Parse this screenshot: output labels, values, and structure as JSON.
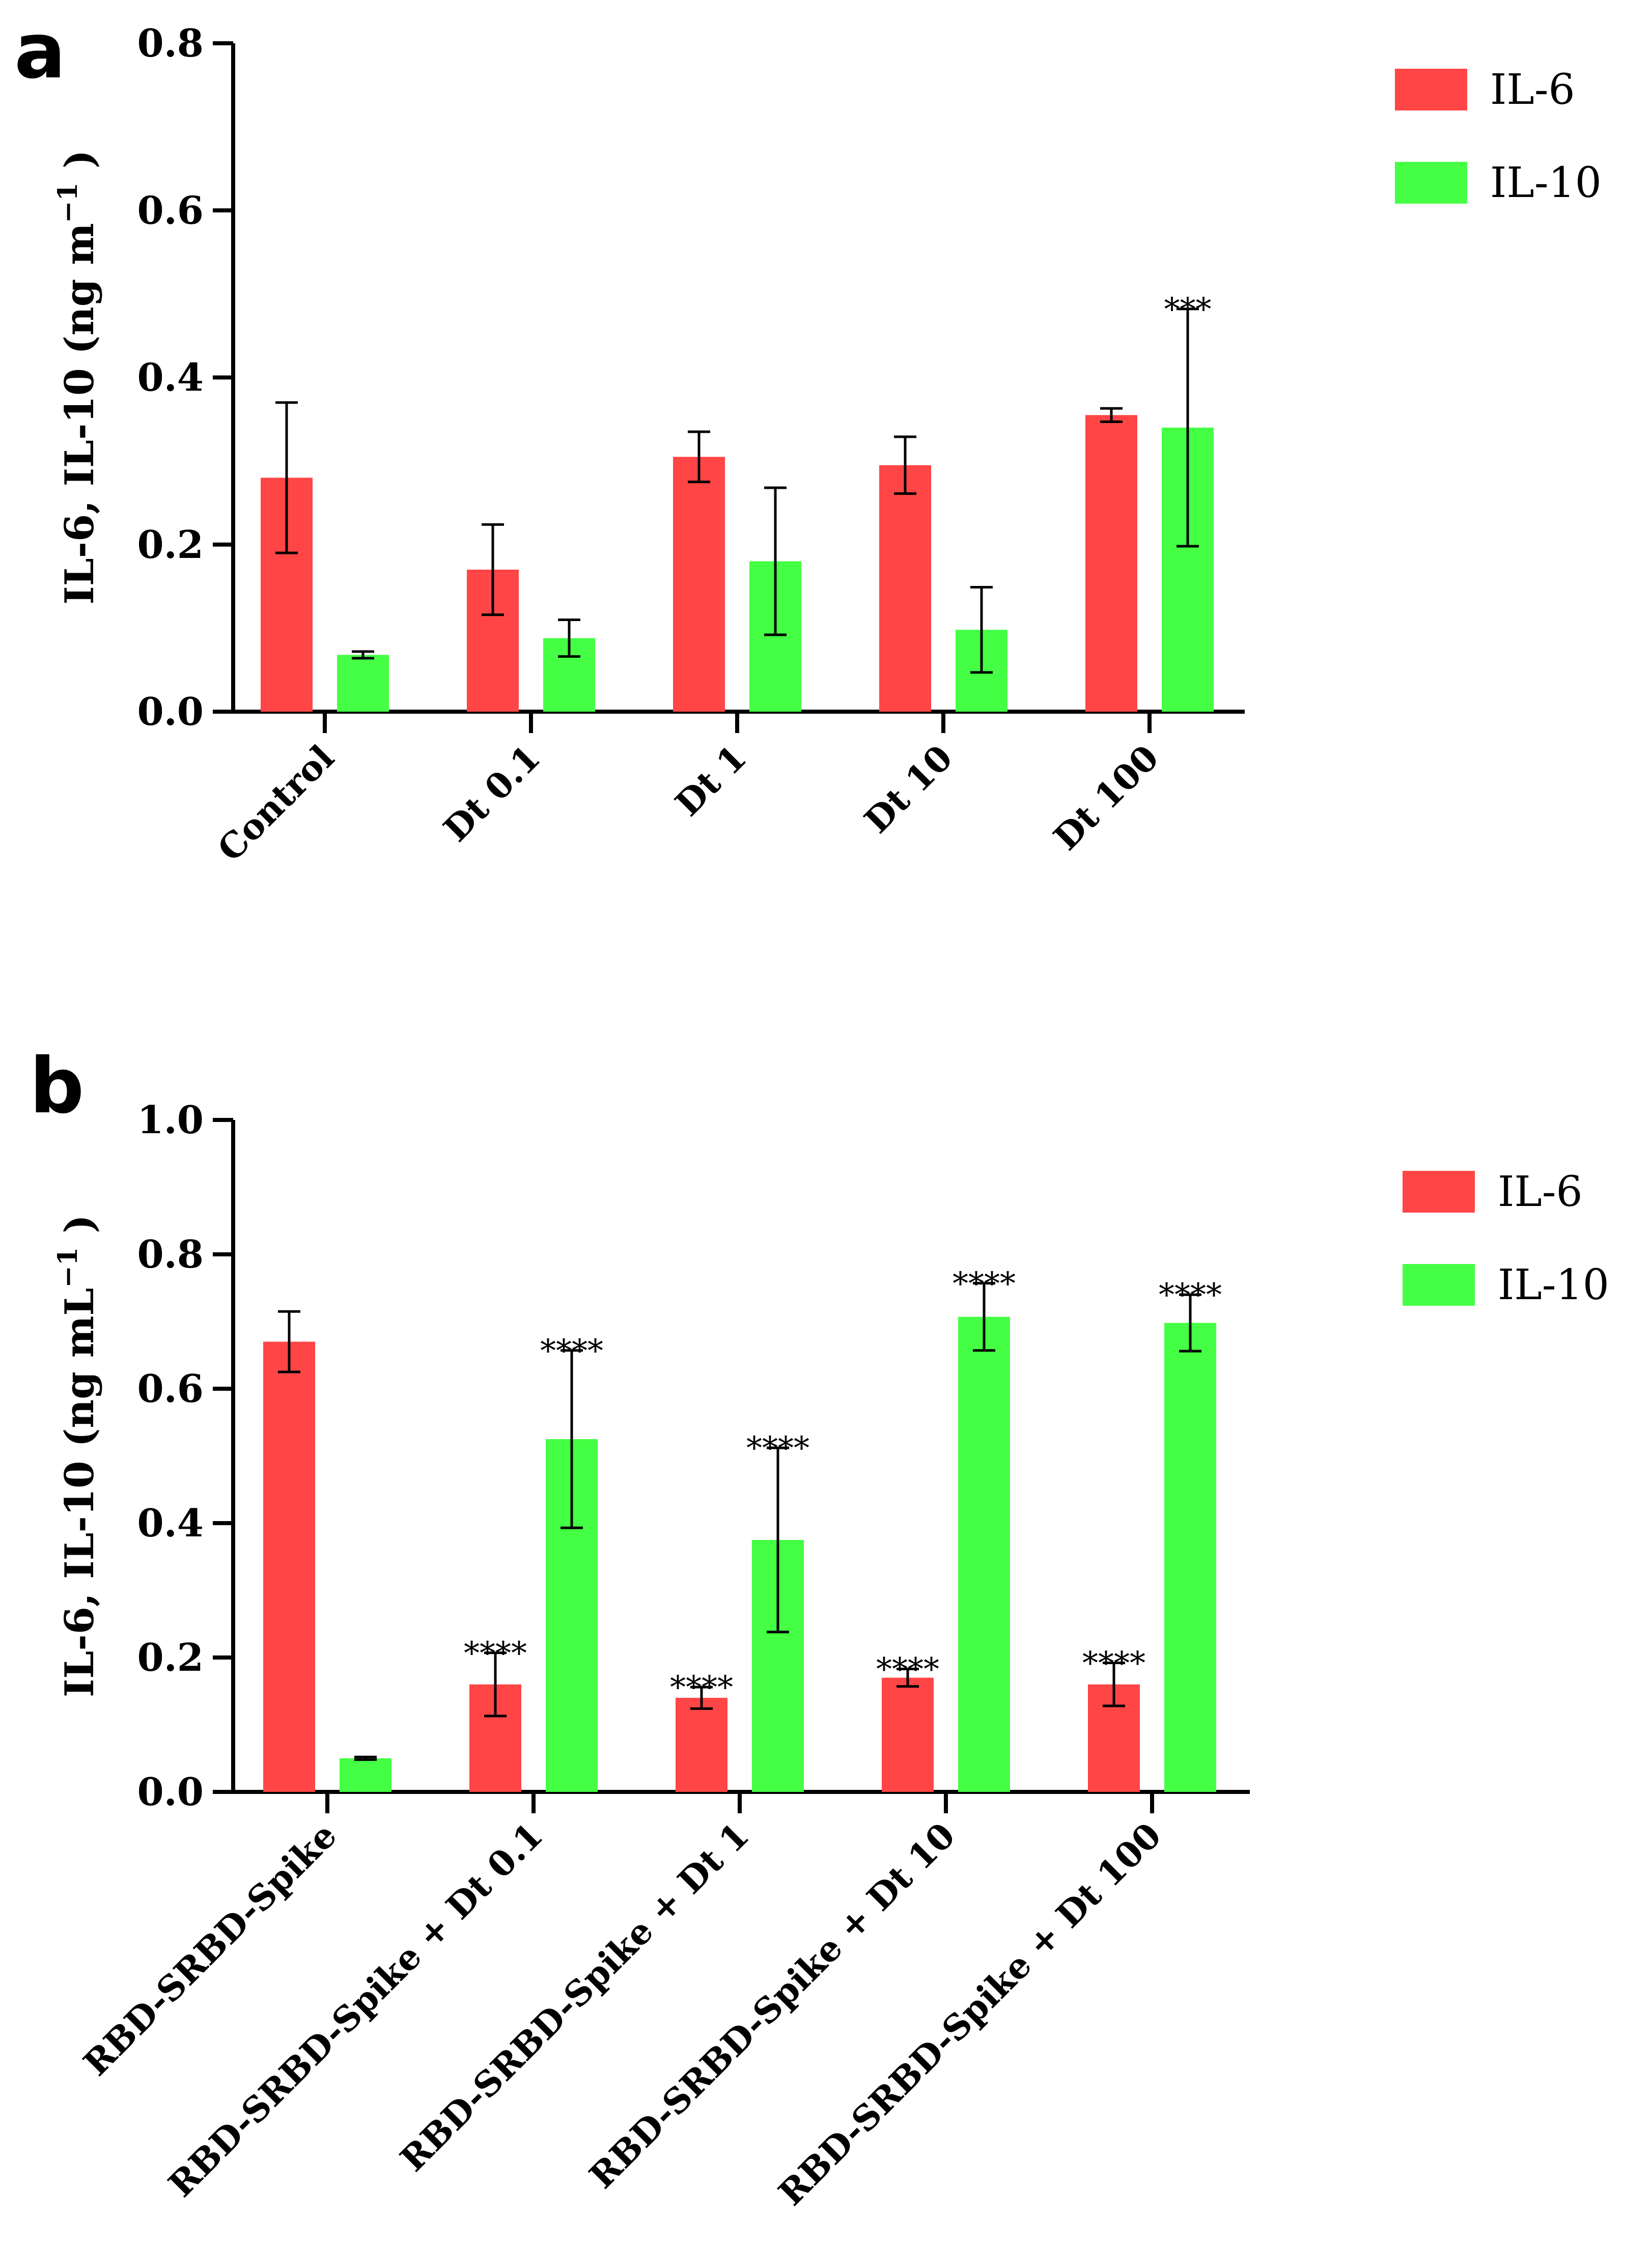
{
  "chart_data": [
    {
      "panel": "a",
      "type": "bar",
      "title": "",
      "xlabel": "",
      "ylabel": "IL-6, IL-10 (ng m",
      "ylabel_superscript": "−1",
      "ylabel_close": ")",
      "ylim": [
        0,
        0.8
      ],
      "yticks": [
        0.0,
        0.2,
        0.4,
        0.6,
        0.8
      ],
      "ytick_labels": [
        "0.0",
        "0.2",
        "0.4",
        "0.6",
        "0.8"
      ],
      "categories": [
        "Control",
        "Dt 0.1",
        "Dt 1",
        "Dt 10",
        "Dt 100"
      ],
      "series": [
        {
          "name": "IL-6",
          "color": "#ff4545",
          "values": [
            0.28,
            0.17,
            0.305,
            0.295,
            0.355
          ],
          "errors": [
            0.09,
            0.054,
            0.03,
            0.034,
            0.008
          ],
          "significance": [
            "",
            "",
            "",
            "",
            ""
          ]
        },
        {
          "name": "IL-10",
          "color": "#44ff44",
          "values": [
            0.068,
            0.088,
            0.18,
            0.098,
            0.34
          ],
          "errors": [
            0.004,
            0.022,
            0.088,
            0.051,
            0.142
          ],
          "significance": [
            "",
            "",
            "",
            "",
            "***"
          ]
        }
      ],
      "legend": [
        "IL-6",
        "IL-10"
      ],
      "legend_position": "top-right"
    },
    {
      "panel": "b",
      "type": "bar",
      "title": "",
      "xlabel": "",
      "ylabel": "IL-6, IL-10 (ng mL",
      "ylabel_superscript": "−1",
      "ylabel_close": ")",
      "ylim": [
        0,
        1.0
      ],
      "yticks": [
        0.0,
        0.2,
        0.4,
        0.6,
        0.8,
        1.0
      ],
      "ytick_labels": [
        "0.0",
        "0.2",
        "0.4",
        "0.6",
        "0.8",
        "1.0"
      ],
      "categories": [
        "RBD-SRBD-Spike",
        "RBD-SRBD-Spike + Dt 0.1",
        "RBD-SRBD-Spike + Dt 1",
        "RBD-SRBD-Spike + Dt 10",
        "RBD-SRBD-Spike + Dt 100"
      ],
      "series": [
        {
          "name": "IL-6",
          "color": "#ff4545",
          "values": [
            0.67,
            0.16,
            0.14,
            0.17,
            0.16
          ],
          "errors": [
            0.045,
            0.047,
            0.016,
            0.013,
            0.032
          ],
          "significance": [
            "",
            "****",
            "****",
            "****",
            "****"
          ]
        },
        {
          "name": "IL-10",
          "color": "#44ff44",
          "values": [
            0.05,
            0.525,
            0.375,
            0.707,
            0.698
          ],
          "errors": [
            0.002,
            0.132,
            0.137,
            0.05,
            0.042
          ],
          "significance": [
            "",
            "****",
            "****",
            "****",
            "****"
          ]
        }
      ],
      "legend": [
        "IL-6",
        "IL-10"
      ],
      "legend_position": "top-right"
    }
  ],
  "panel_labels": [
    "a",
    "b"
  ]
}
